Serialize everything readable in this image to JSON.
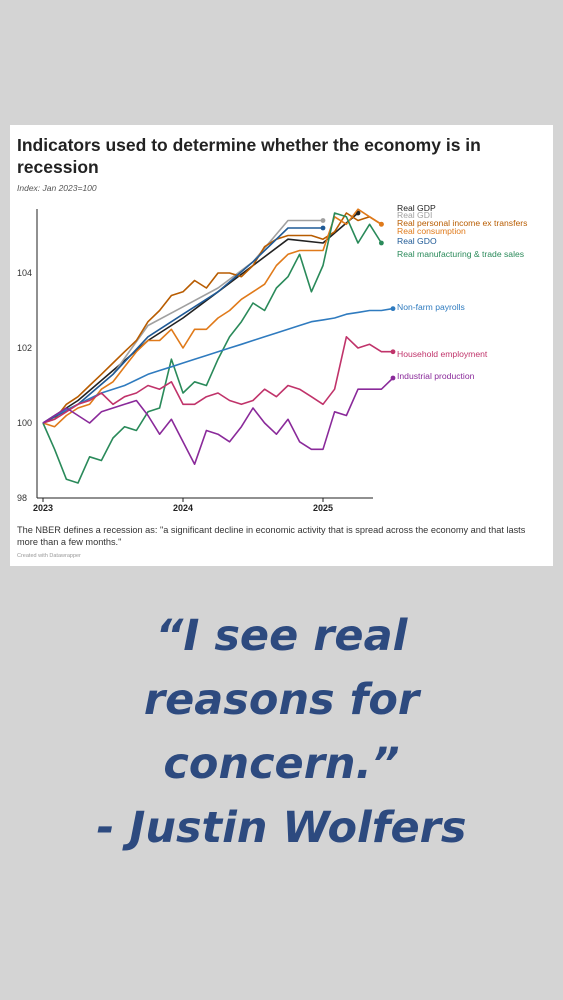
{
  "card": {
    "title": "Indicators used to determine whether the economy is in recession",
    "subtitle": "Index: Jan 2023=100",
    "note": "The NBER defines a recession as: \"a significant decline in economic activity that is spread across the economy and that lasts more than a few months.\"",
    "credit": "Created with Datawrapper"
  },
  "quote": {
    "lines": [
      "“I see real",
      "reasons for",
      "concern.”",
      "- Justin Wolfers"
    ],
    "color": "#2d4a7f"
  },
  "chart_data": {
    "type": "line",
    "title": "Indicators used to determine whether the economy is in recession",
    "subtitle": "Index: Jan 2023=100",
    "x_ticks": [
      "2023",
      "2024",
      "2025"
    ],
    "y_ticks": [
      98,
      100,
      102,
      104
    ],
    "xlim": [
      2023.0,
      2025.5
    ],
    "ylim": [
      98,
      106
    ],
    "grid": false,
    "legend": "direct labels at right",
    "series": [
      {
        "name": "Real GDP",
        "color": "#222222",
        "frequency": "quarterly",
        "x": [
          2023.0,
          2023.25,
          2023.5,
          2023.75,
          2024.0,
          2024.25,
          2024.5,
          2024.75,
          2025.0,
          2025.25
        ],
        "values": [
          100,
          100.6,
          101.4,
          102.2,
          102.8,
          103.5,
          104.2,
          104.9,
          104.8,
          105.6
        ]
      },
      {
        "name": "Real GDI",
        "color": "#a0a0a0",
        "frequency": "quarterly",
        "x": [
          2023.0,
          2023.25,
          2023.5,
          2023.75,
          2024.0,
          2024.25,
          2024.5,
          2024.75,
          2025.0
        ],
        "values": [
          100,
          100.5,
          101.3,
          102.6,
          103.1,
          103.6,
          104.3,
          105.4,
          105.4
        ]
      },
      {
        "name": "Real personal income ex transfers",
        "color": "#b85c00",
        "frequency": "monthly",
        "x": [
          2023.0,
          2023.083,
          2023.167,
          2023.25,
          2023.333,
          2023.417,
          2023.5,
          2023.583,
          2023.667,
          2023.75,
          2023.833,
          2023.917,
          2024.0,
          2024.083,
          2024.167,
          2024.25,
          2024.333,
          2024.417,
          2024.5,
          2024.583,
          2024.667,
          2024.75,
          2024.833,
          2024.917,
          2025.0,
          2025.083,
          2025.167,
          2025.25,
          2025.333,
          2025.417
        ],
        "values": [
          100,
          100.1,
          100.5,
          100.7,
          101.0,
          101.3,
          101.6,
          101.9,
          102.2,
          102.7,
          103.0,
          103.4,
          103.5,
          103.8,
          103.6,
          104.0,
          104.0,
          103.9,
          104.2,
          104.7,
          104.9,
          105.0,
          105.0,
          105.0,
          104.9,
          105.1,
          105.6,
          105.4,
          105.5,
          105.3
        ]
      },
      {
        "name": "Real consumption",
        "color": "#e07a1a",
        "frequency": "monthly",
        "x": [
          2023.0,
          2023.083,
          2023.167,
          2023.25,
          2023.333,
          2023.417,
          2023.5,
          2023.583,
          2023.667,
          2023.75,
          2023.833,
          2023.917,
          2024.0,
          2024.083,
          2024.167,
          2024.25,
          2024.333,
          2024.417,
          2024.5,
          2024.583,
          2024.667,
          2024.75,
          2024.833,
          2024.917,
          2025.0,
          2025.083,
          2025.167,
          2025.25,
          2025.333,
          2025.417
        ],
        "values": [
          100,
          99.9,
          100.2,
          100.4,
          100.5,
          100.9,
          101.1,
          101.5,
          101.9,
          102.2,
          102.2,
          102.5,
          102.0,
          102.5,
          102.5,
          102.8,
          103.0,
          103.3,
          103.5,
          103.7,
          104.2,
          104.5,
          104.6,
          104.6,
          104.6,
          105.5,
          105.3,
          105.7,
          105.5,
          105.3
        ]
      },
      {
        "name": "Real GDO",
        "color": "#1f5a96",
        "frequency": "quarterly",
        "x": [
          2023.0,
          2023.25,
          2023.5,
          2023.75,
          2024.0,
          2024.25,
          2024.5,
          2024.75,
          2025.0
        ],
        "values": [
          100,
          100.5,
          101.3,
          102.3,
          102.9,
          103.5,
          104.3,
          105.2,
          105.2
        ]
      },
      {
        "name": "Real manufacturing & trade sales",
        "color": "#2a8a5a",
        "frequency": "monthly",
        "x": [
          2023.0,
          2023.083,
          2023.167,
          2023.25,
          2023.333,
          2023.417,
          2023.5,
          2023.583,
          2023.667,
          2023.75,
          2023.833,
          2023.917,
          2024.0,
          2024.083,
          2024.167,
          2024.25,
          2024.333,
          2024.417,
          2024.5,
          2024.583,
          2024.667,
          2024.75,
          2024.833,
          2024.917,
          2025.0,
          2025.083,
          2025.167,
          2025.25,
          2025.333,
          2025.417
        ],
        "values": [
          100,
          99.3,
          98.5,
          98.4,
          99.1,
          99.0,
          99.6,
          99.9,
          99.8,
          100.3,
          100.4,
          101.7,
          100.8,
          101.1,
          101.0,
          101.7,
          102.3,
          102.7,
          103.2,
          103.0,
          103.6,
          103.9,
          104.5,
          103.5,
          104.2,
          105.6,
          105.5,
          104.8,
          105.3,
          104.8
        ]
      },
      {
        "name": "Non-farm payrolls",
        "color": "#2f7bbf",
        "frequency": "monthly",
        "x": [
          2023.0,
          2023.083,
          2023.167,
          2023.25,
          2023.333,
          2023.417,
          2023.5,
          2023.583,
          2023.667,
          2023.75,
          2023.833,
          2023.917,
          2024.0,
          2024.083,
          2024.167,
          2024.25,
          2024.333,
          2024.417,
          2024.5,
          2024.583,
          2024.667,
          2024.75,
          2024.833,
          2024.917,
          2025.0,
          2025.083,
          2025.167,
          2025.25,
          2025.333,
          2025.417,
          2025.5
        ],
        "values": [
          100,
          100.2,
          100.35,
          100.5,
          100.65,
          100.8,
          100.9,
          101.0,
          101.15,
          101.3,
          101.4,
          101.5,
          101.6,
          101.7,
          101.8,
          101.9,
          102.0,
          102.1,
          102.2,
          102.3,
          102.4,
          102.5,
          102.6,
          102.7,
          102.75,
          102.8,
          102.9,
          102.95,
          103.0,
          103.0,
          103.05
        ]
      },
      {
        "name": "Household employment",
        "color": "#c0336a",
        "frequency": "monthly",
        "x": [
          2023.0,
          2023.083,
          2023.167,
          2023.25,
          2023.333,
          2023.417,
          2023.5,
          2023.583,
          2023.667,
          2023.75,
          2023.833,
          2023.917,
          2024.0,
          2024.083,
          2024.167,
          2024.25,
          2024.333,
          2024.417,
          2024.5,
          2024.583,
          2024.667,
          2024.75,
          2024.833,
          2024.917,
          2025.0,
          2025.083,
          2025.167,
          2025.25,
          2025.333,
          2025.417,
          2025.5
        ],
        "values": [
          100,
          100.1,
          100.3,
          100.5,
          100.6,
          100.8,
          100.5,
          100.7,
          100.8,
          101.0,
          100.9,
          101.1,
          100.5,
          100.5,
          100.7,
          100.8,
          100.6,
          100.5,
          100.6,
          100.9,
          100.7,
          101.0,
          100.9,
          100.7,
          100.5,
          100.9,
          102.3,
          102.0,
          102.1,
          101.9,
          101.9
        ]
      },
      {
        "name": "Industrial production",
        "color": "#8a2a9a",
        "frequency": "monthly",
        "x": [
          2023.0,
          2023.083,
          2023.167,
          2023.25,
          2023.333,
          2023.417,
          2023.5,
          2023.583,
          2023.667,
          2023.75,
          2023.833,
          2023.917,
          2024.0,
          2024.083,
          2024.167,
          2024.25,
          2024.333,
          2024.417,
          2024.5,
          2024.583,
          2024.667,
          2024.75,
          2024.833,
          2024.917,
          2025.0,
          2025.083,
          2025.167,
          2025.25,
          2025.333,
          2025.417,
          2025.5
        ],
        "values": [
          100,
          100.2,
          100.4,
          100.2,
          100.0,
          100.3,
          100.4,
          100.5,
          100.6,
          100.2,
          99.7,
          100.1,
          99.5,
          98.9,
          99.8,
          99.7,
          99.5,
          99.9,
          100.4,
          100.0,
          99.7,
          100.1,
          99.5,
          99.3,
          99.3,
          100.3,
          100.2,
          100.9,
          100.9,
          100.9,
          101.2
        ]
      }
    ]
  }
}
